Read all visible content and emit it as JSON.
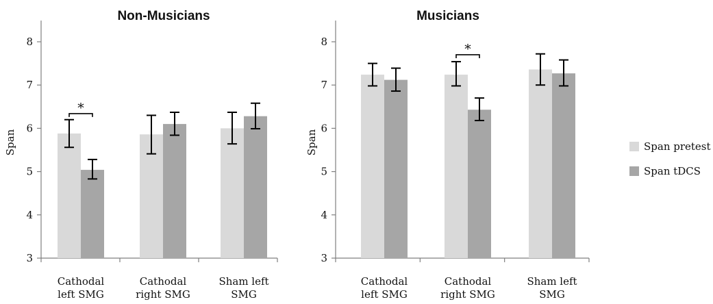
{
  "legend": [
    {
      "label": "Span pretest",
      "color": "#d9d9d9"
    },
    {
      "label": "Span tDCS",
      "color": "#a6a6a6"
    }
  ],
  "chart_data": [
    {
      "type": "bar",
      "title": "Non-Musicians",
      "xlabel": "",
      "ylabel": "Span",
      "ylim": [
        3,
        8.5
      ],
      "yticks": [
        "3",
        "4",
        "5",
        "6",
        "7",
        "8"
      ],
      "categories": [
        [
          "Cathodal",
          "left SMG"
        ],
        [
          "Cathodal",
          "right SMG"
        ],
        [
          "Sham left",
          "SMG"
        ]
      ],
      "series": [
        {
          "name": "Span pretest",
          "values": [
            5.88,
            5.86,
            6.0
          ],
          "err_low": [
            5.56,
            5.41,
            5.64
          ],
          "err_high": [
            6.2,
            6.3,
            6.37
          ]
        },
        {
          "name": "Span tDCS",
          "values": [
            5.04,
            6.1,
            6.28
          ],
          "err_low": [
            4.83,
            5.84,
            5.99
          ],
          "err_high": [
            5.28,
            6.37,
            6.58
          ]
        }
      ],
      "significance": [
        {
          "category_index": 0,
          "label": "*",
          "y": 6.34
        }
      ],
      "grid": false
    },
    {
      "type": "bar",
      "title": "Musicians",
      "xlabel": "",
      "ylabel": "Span",
      "ylim": [
        3,
        8.5
      ],
      "yticks": [
        "3",
        "4",
        "5",
        "6",
        "7",
        "8"
      ],
      "categories": [
        [
          "Cathodal",
          "left SMG"
        ],
        [
          "Cathodal",
          "right SMG"
        ],
        [
          "Sham left",
          "SMG"
        ]
      ],
      "series": [
        {
          "name": "Span pretest",
          "values": [
            7.24,
            7.24,
            7.36
          ],
          "err_low": [
            6.98,
            6.98,
            7.0
          ],
          "err_high": [
            7.5,
            7.54,
            7.72
          ]
        },
        {
          "name": "Span tDCS",
          "values": [
            7.12,
            6.43,
            7.27
          ],
          "err_low": [
            6.86,
            6.18,
            6.98
          ],
          "err_high": [
            7.39,
            6.7,
            7.58
          ]
        }
      ],
      "significance": [
        {
          "category_index": 1,
          "label": "*",
          "y": 7.7
        }
      ],
      "grid": false
    }
  ]
}
